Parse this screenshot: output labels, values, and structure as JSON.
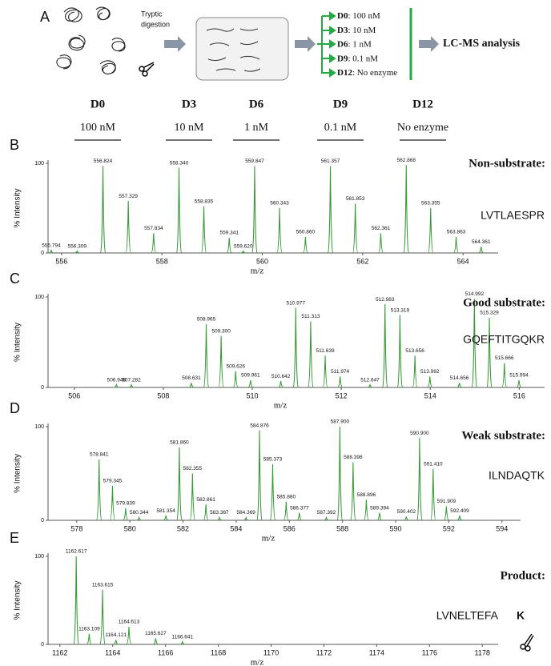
{
  "schematic": {
    "panel": "A",
    "step": [
      "Tryptic",
      "digestion"
    ],
    "conditions": [
      {
        "id": "D0",
        "text": ": 100 nM"
      },
      {
        "id": "D3",
        "text": ": 10 nM"
      },
      {
        "id": "D6",
        "text": ": 1 nM"
      },
      {
        "id": "D9",
        "text": ": 0.1 nM"
      },
      {
        "id": "D12",
        "text": ": No enzyme"
      }
    ],
    "analysis": "LC-MS analysis"
  },
  "header": {
    "columns": [
      {
        "id": "D0",
        "conc": "100 nM"
      },
      {
        "id": "D3",
        "conc": "10 nM"
      },
      {
        "id": "D6",
        "conc": "1 nM"
      },
      {
        "id": "D9",
        "conc": "0.1 nM"
      },
      {
        "id": "D12",
        "conc": "No enzyme"
      }
    ]
  },
  "chart_data": [
    {
      "type": "spectrum",
      "panel": "B",
      "label": "Non-substrate:",
      "sequence": "LVTLAESPR",
      "x_label": "m/z",
      "y_label": "% Intensity",
      "color": "#3a9a3a",
      "x": [
        555.794,
        556.309,
        556.824,
        557.329,
        557.834,
        558.34,
        558.835,
        559.341,
        559.62,
        559.847,
        560.343,
        560.86,
        561.357,
        561.853,
        562.361,
        562.868,
        563.355,
        563.863,
        564.361
      ],
      "peak_labels": [
        "555.794",
        "556.309",
        "556.824",
        "557.329",
        "557.834",
        "558.340",
        "558.835",
        "559.341",
        "559.620",
        "559.847",
        "560.343",
        "560.860",
        "561.357",
        "561.853",
        "562.361",
        "562.868",
        "563.355",
        "563.863",
        "564.361"
      ],
      "values": [
        3,
        2,
        97,
        58,
        22,
        95,
        52,
        17,
        2,
        97,
        50,
        18,
        97,
        55,
        22,
        98,
        50,
        18,
        7
      ],
      "xlim": [
        555.73,
        564.7
      ],
      "xticks": [
        556,
        558,
        560,
        562,
        564
      ],
      "ylim": [
        0,
        100
      ],
      "yticks": [
        0,
        100
      ]
    },
    {
      "type": "spectrum",
      "panel": "C",
      "label": "Good substrate:",
      "sequence": "GQEFTITGQKR",
      "x_label": "m/z",
      "y_label": "% Intensity",
      "color": "#3a9a3a",
      "x": [
        506.946,
        507.282,
        508.631,
        508.965,
        509.3,
        509.626,
        509.961,
        510.642,
        510.977,
        511.313,
        511.639,
        511.974,
        512.647,
        512.983,
        513.319,
        513.656,
        513.992,
        514.656,
        514.992,
        515.329,
        515.666,
        515.994
      ],
      "peak_labels": [
        "506.946",
        "507.282",
        "508.631",
        "508.965",
        "509.300",
        "509.626",
        "509.961",
        "510.642",
        "510.977",
        "511.313",
        "511.639",
        "511.974",
        "512.647",
        "512.983",
        "513.319",
        "513.656",
        "513.992",
        "514.656",
        "514.992",
        "515.329",
        "515.666",
        "515.994"
      ],
      "values": [
        3,
        3,
        5,
        70,
        57,
        18,
        8,
        7,
        88,
        73,
        35,
        12,
        3,
        92,
        80,
        35,
        12,
        5,
        98,
        77,
        27,
        8
      ],
      "xlim": [
        505.41,
        516.57
      ],
      "xticks": [
        506,
        508,
        510,
        512,
        514,
        516
      ],
      "ylim": [
        0,
        100
      ],
      "yticks": [
        0,
        100
      ]
    },
    {
      "type": "spectrum",
      "panel": "D",
      "label": "Weak substrate:",
      "sequence": "ILNDAQTK",
      "x_label": "m/z",
      "y_label": "% Intensity",
      "color": "#3a9a3a",
      "x": [
        578.841,
        579.345,
        579.839,
        580.344,
        581.354,
        581.86,
        582.355,
        582.861,
        583.367,
        584.369,
        584.876,
        585.373,
        585.88,
        586.377,
        587.392,
        587.9,
        588.398,
        588.896,
        589.394,
        590.402,
        590.9,
        591.41,
        591.909,
        592.409
      ],
      "peak_labels": [
        "578.841",
        "579.345",
        "579.839",
        "580.344",
        "581.354",
        "581.860",
        "582.355",
        "582.861",
        "583.367",
        "584.369",
        "584.876",
        "585.373",
        "585.880",
        "586.377",
        "587.392",
        "587.900",
        "588.398",
        "588.896",
        "589.394",
        "590.402",
        "590.900",
        "591.410",
        "591.909",
        "592.409"
      ],
      "values": [
        65,
        37,
        13,
        3,
        5,
        78,
        50,
        17,
        3,
        3,
        96,
        60,
        20,
        8,
        3,
        100,
        62,
        22,
        8,
        4,
        88,
        55,
        15,
        5
      ],
      "xlim": [
        576.92,
        594.7
      ],
      "xticks": [
        578,
        580,
        582,
        584,
        586,
        588,
        590,
        592,
        594
      ],
      "ylim": [
        0,
        100
      ],
      "yticks": [
        0,
        100
      ]
    },
    {
      "type": "spectrum",
      "panel": "E",
      "label": "Product:",
      "sequence": "LVNELTEFA",
      "cleaved_residue": "K",
      "x_label": "m/z",
      "y_label": "% Intensity",
      "color": "#3a9a3a",
      "x": [
        1162.617,
        1163.109,
        1163.615,
        1164.121,
        1164.613,
        1165.627,
        1166.641
      ],
      "peak_labels": [
        "1162.617",
        "1163.109",
        "1163.615",
        "1164.121",
        "1164.613",
        "1165.627",
        "1166.641"
      ],
      "values": [
        100,
        12,
        62,
        5,
        20,
        7,
        3
      ],
      "xlim": [
        1161.55,
        1178.6
      ],
      "xticks": [
        1162,
        1164,
        1166,
        1168,
        1170,
        1172,
        1174,
        1176,
        1178
      ],
      "ylim": [
        0,
        100
      ],
      "yticks": [
        0,
        100
      ]
    }
  ]
}
